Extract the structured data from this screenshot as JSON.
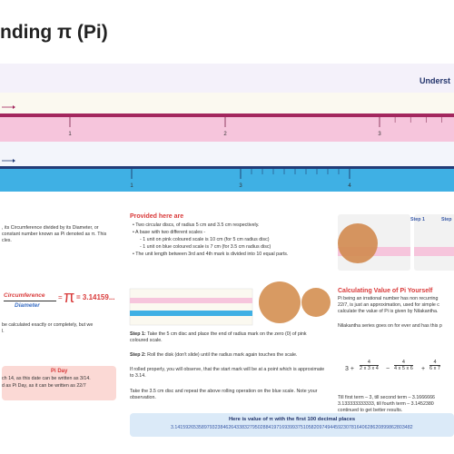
{
  "title": "nding π (Pi)",
  "banner": "Underst",
  "pink_scale": {
    "labels": [
      "1",
      "2",
      "3"
    ]
  },
  "blue_scale": {
    "labels": [
      "1",
      "3",
      "4"
    ]
  },
  "intro": [
    ", its Circumference divided by its Diameter, or",
    "constant number known as Pi denoted as π. This",
    "cles."
  ],
  "formula": {
    "numerator": "Circumference",
    "denominator": "Diameter",
    "equals": "=",
    "pi": "π",
    "value": "= 3.14159..."
  },
  "note": [
    "be calculated exactly or completely, but we",
    "l."
  ],
  "pi_day": {
    "title": "Pi Day",
    "lines": [
      "ch 14, as this date can be written as 3/14.",
      "d as Pi Day, as it can be written as 22/7"
    ]
  },
  "provided": {
    "heading": "Provided here are",
    "items": [
      "Two circular discs, of radius 5 cm and 3.5 cm respectively.",
      "A base with two different scales -",
      "- 1 unit on pink coloured scale is 10 cm  (for 5 cm radius disc)",
      "- 1 unit on blue coloured scale is 7 cm (for 3.5 cm radius disc)",
      "The unit length between 3rd and 4th mark is divided into 10 equal parts."
    ]
  },
  "steps": [
    {
      "label": "Step 1:",
      "text": "Take the 5 cm disc and place the end of radius mark on the zero (0) of pink coloured scale."
    },
    {
      "label": "Step 2:",
      "text": "Roll the disk (don't slide) until the radius mark again touches the scale."
    }
  ],
  "observations": [
    "If rolled properly, you will observe, that the start mark will be at a point which is approximate to 3.14.",
    "Take the 3.5 cm disc and repeat the above rolling operation on the blue scale. Note your observation."
  ],
  "step_tabs": [
    "Step 1",
    "Step"
  ],
  "calculate": {
    "heading": "Calculating Value of Pi Yourself",
    "lines": [
      "Pi being an irrational number has non recurring",
      "22/7, is just an approximation, used for simple c",
      "calculate the value of Pi is given by Nilakantha.",
      "Nilakantha series goes on for ever and has this p"
    ],
    "series": {
      "start": "3 +",
      "ops": [
        "−",
        "+"
      ],
      "terms": [
        {
          "numerator": "4",
          "denominator": "2 x 3 x 4"
        },
        {
          "numerator": "4",
          "denominator": "4 x 5 x 6"
        },
        {
          "numerator": "4",
          "denominator": "6 x 7"
        }
      ]
    },
    "results": [
      "Till first term – 3, till second term – 3.1666666",
      "3.133333333333, till fourth term – 3.1452380",
      "continued to get better results."
    ]
  },
  "decimals": {
    "heading": "Here is value of π with the first 100 decimal places",
    "digits": "3.14159265358979323846264338327950288419716939937510582097494459230781640628620899862803482"
  }
}
